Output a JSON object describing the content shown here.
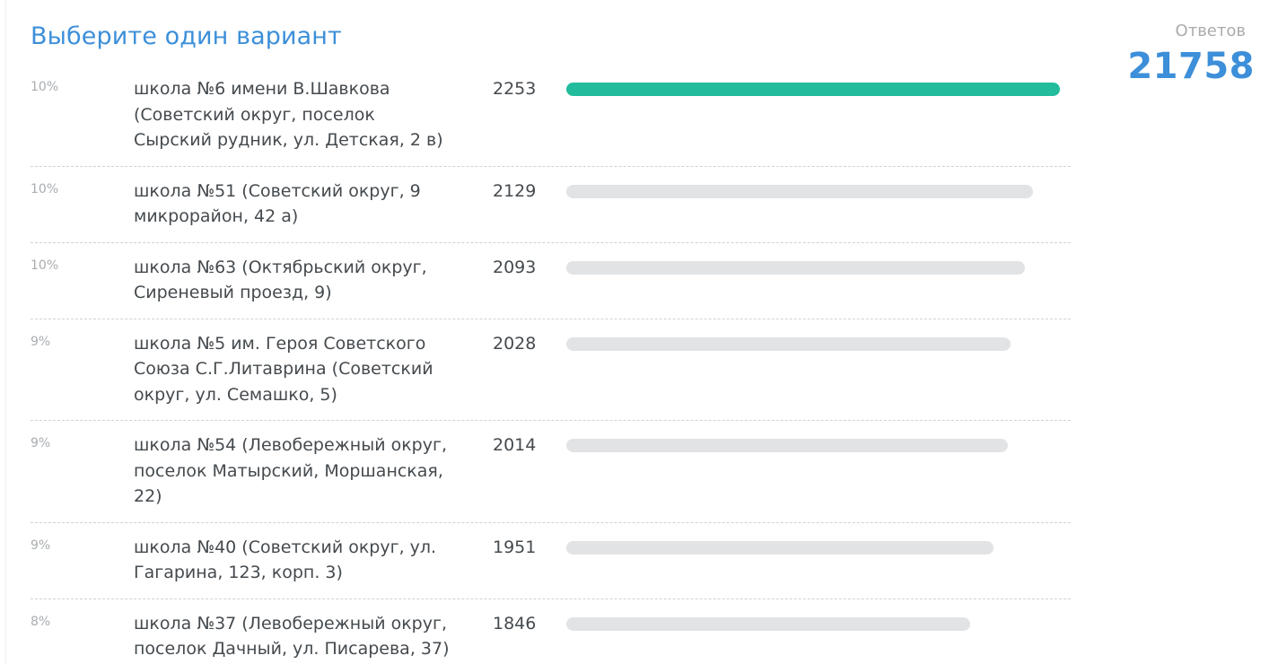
{
  "poll": {
    "title": "Выберите один вариант",
    "responses_label": "Ответов",
    "responses_count": "21758",
    "colors": {
      "accent": "#3d8fd9",
      "leader_bar": "#22bc9c",
      "bar": "#e1e3e5"
    },
    "options": [
      {
        "percent": "10%",
        "text": "школа №6 имени В.Шавкова (Советский округ, поселок Сырский рудник, ул. Детская, 2 в)",
        "votes": "2253",
        "share_of_max": 1.0
      },
      {
        "percent": "10%",
        "text": "школа №51 (Советский округ, 9 микрорайон, 42 а)",
        "votes": "2129",
        "share_of_max": 0.945
      },
      {
        "percent": "10%",
        "text": "школа №63 (Октябрьский округ, Сиреневый проезд, 9)",
        "votes": "2093",
        "share_of_max": 0.929
      },
      {
        "percent": "9%",
        "text": "школа №5 им. Героя Советского Союза С.Г.Литаврина (Советский округ, ул. Семашко, 5)",
        "votes": "2028",
        "share_of_max": 0.9
      },
      {
        "percent": "9%",
        "text": "школа №54 (Левобережный округ, поселок Матырский, Моршанская, 22)",
        "votes": "2014",
        "share_of_max": 0.894
      },
      {
        "percent": "9%",
        "text": "школа №40 (Советский округ, ул. Гагарина, 123, корп. 3)",
        "votes": "1951",
        "share_of_max": 0.866
      },
      {
        "percent": "8%",
        "text": "школа №37 (Левобережный округ, поселок Дачный, ул. Писарева, 37)",
        "votes": "1846",
        "share_of_max": 0.819
      }
    ]
  }
}
